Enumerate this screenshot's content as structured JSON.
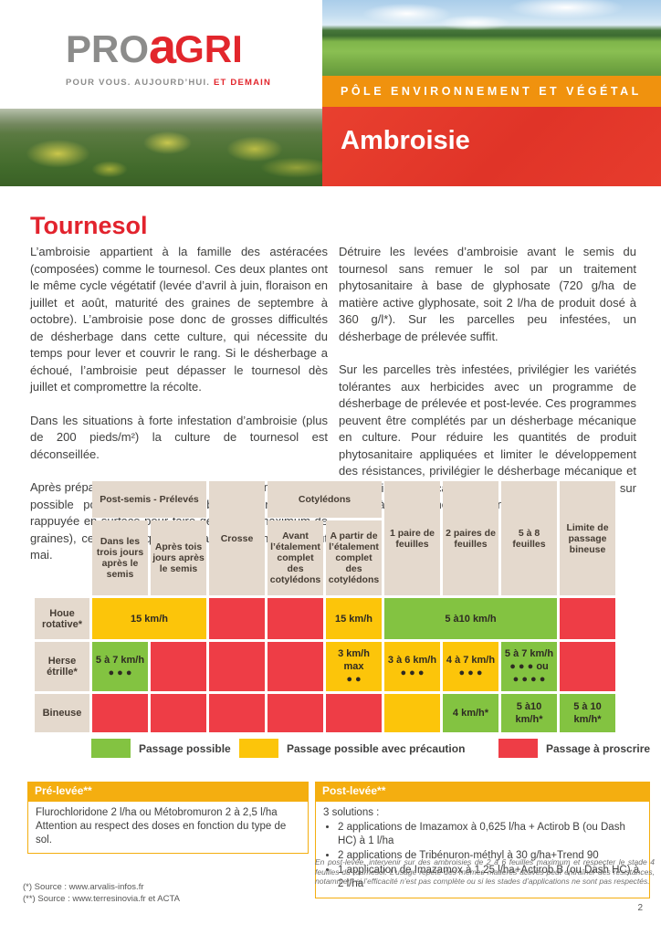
{
  "colors": {
    "brand_red": "#e2262c",
    "brand_gray": "#8c8c8b",
    "banner_orange": "#f0920e",
    "banner_red": "#e5382e",
    "table_header_beige": "#e4d9cd",
    "status_green": "#83c341",
    "status_yellow": "#fcc50a",
    "status_red": "#ee3d46",
    "box_yellow": "#f4ae10"
  },
  "header": {
    "logo": {
      "pro": "PRO",
      "a": "a",
      "gri": "GRI",
      "tagline_gray": "POUR VOUS. AUJOURD’HUI.",
      "tagline_red": "ET DEMAIN"
    },
    "banner": "PÔLE ENVIRONNEMENT ET VÉGÉTAL",
    "title": "Ambroisie"
  },
  "article": {
    "heading": "Tournesol",
    "col_left": [
      "L’ambroisie appartient à la famille des astéracées (composées) comme le tournesol. Ces deux plantes ont le même cycle végétatif (levée d’avril à juin, floraison en juillet et août, maturité des graines de septembre à octobre). L’ambroisie pose donc de grosses difficultés de désherbage dans cette culture, qui nécessite du temps pour lever et couvrir le rang. Si le désherbage a échoué, l’ambroisie peut dépasser le tournesol dès juillet et compromettre la récolte.",
      "Dans les situations à forte infestation d’ambroisie (plus de 200 pieds/m²) la culture de tournesol est déconseillée.",
      "Après préparation du sol, réaliser un faux semis dès que possible pour faire lever l’ambroisie (terre fine et rappuyée en surface pour faire germer un maximum de graines), ce qui implique de retarder le semis à début mai."
    ],
    "col_right": [
      "Détruire les levées d’ambroisie avant le semis du tournesol sans remuer le sol par un traitement phytosanitaire à base de glyphosate (720 g/ha de matière active glyphosate, soit 2 l/ha de produit dosé à 360 g/l*). Sur les parcelles peu infestées, un désherbage de prélevée suffit.",
      "Sur les parcelles très infestées, privilégier les variétés tolérantes aux herbicides avec un programme de désherbage de prélevée et post-levée. Ces programmes peuvent être complétés par un désherbage mécanique en culture. Pour réduire les quantités de produit phytosanitaire appliquées et limiter le développement des résistances, privilégier le désherbage mécanique et les applications localisées de produit de post-levée sur le rang à l’aide d’une désherbineuse."
    ]
  },
  "table": {
    "top_headers": [
      {
        "label": "Post-semis - Prélevés",
        "colspan": 2
      },
      {
        "label": "Crosse",
        "rowspan": 2
      },
      {
        "label": "Cotylédons",
        "colspan": 2
      },
      {
        "label": "1 paire de feuilles",
        "rowspan": 2
      },
      {
        "label": "2 paires de feuilles",
        "rowspan": 2
      },
      {
        "label": "5 à 8 feuilles",
        "rowspan": 2
      },
      {
        "label": "Limite de passage bineuse",
        "rowspan": 2
      }
    ],
    "sub_headers": [
      "Dans les trois jours après le semis",
      "Après tois jours après le semis",
      "Avant l’étalement complet des cotylédons",
      "A partir de l’étalement complet des cotylédons"
    ],
    "rows": [
      {
        "label": "Houe rotative*",
        "cells": [
          {
            "color": "yellow",
            "colspan": 2,
            "text": "15 km/h"
          },
          {
            "color": "red",
            "text": ""
          },
          {
            "color": "red",
            "text": ""
          },
          {
            "color": "yellow",
            "text": "15 km/h"
          },
          {
            "color": "green",
            "colspan": 3,
            "text": "5 à10 km/h"
          },
          {
            "color": "red",
            "text": ""
          }
        ]
      },
      {
        "label": "Herse étrille*",
        "cells": [
          {
            "color": "green",
            "text": "5 à 7 km/h\n● ● ●"
          },
          {
            "color": "red",
            "text": ""
          },
          {
            "color": "red",
            "text": ""
          },
          {
            "color": "red",
            "text": ""
          },
          {
            "color": "yellow",
            "text": "3 km/h\nmax\n● ●"
          },
          {
            "color": "yellow",
            "text": "3 à 6 km/h\n● ● ●"
          },
          {
            "color": "yellow",
            "text": "4 à 7 km/h\n● ● ●"
          },
          {
            "color": "green",
            "text": "5 à 7 km/h\n● ● ● ou\n● ● ● ●"
          },
          {
            "color": "red",
            "text": ""
          }
        ]
      },
      {
        "label": "Bineuse",
        "cells": [
          {
            "color": "red",
            "text": ""
          },
          {
            "color": "red",
            "text": ""
          },
          {
            "color": "red",
            "text": ""
          },
          {
            "color": "red",
            "text": ""
          },
          {
            "color": "red",
            "text": ""
          },
          {
            "color": "yellow",
            "text": ""
          },
          {
            "color": "green",
            "text": "4 km/h*"
          },
          {
            "color": "green",
            "text": "5 à10\nkm/h*"
          },
          {
            "color": "green",
            "text": "5 à 10\nkm/h*"
          }
        ]
      }
    ]
  },
  "legend": [
    {
      "color": "green",
      "label": "Passage possible"
    },
    {
      "color": "yellow",
      "label": "Passage possible avec précaution"
    },
    {
      "color": "red",
      "label": "Passage à proscrire"
    }
  ],
  "boxes": {
    "pre": {
      "title": "Pré-levée**",
      "lines": [
        "Flurochloridone 2 l/ha ou Métobromuron 2 à 2,5 l/ha",
        "Attention au respect des doses en fonction du type de sol."
      ]
    },
    "post": {
      "title": "Post-levée**",
      "intro": "3 solutions :",
      "bullets": [
        "2 applications de Imazamox à 0,625 l/ha + Actirob B (ou Dash HC) à 1 l/ha",
        "2 applications de Tribénuron-méthyl à 30 g/ha+Trend 90",
        "1 application de Imazamox à 1,25 l/ha+Actirob B (ou Dash HC) à 2 l/ha"
      ],
      "note": "En post-levée, intervenir sur des ambroisies de 2 à 6 feuilles maximum et respecter le stade 4 feuilles du tournesol. L’usage répété des mêmes matières actives peut entraîner des résistances, notamment si l’efficacité n’est pas complète ou si les stades d’applications ne sont pas respectés."
    }
  },
  "footer": {
    "sources": [
      "(*) Source : www.arvalis-infos.fr",
      "(**) Source : www.terresinovia.fr et ACTA"
    ],
    "page_number": "2"
  }
}
